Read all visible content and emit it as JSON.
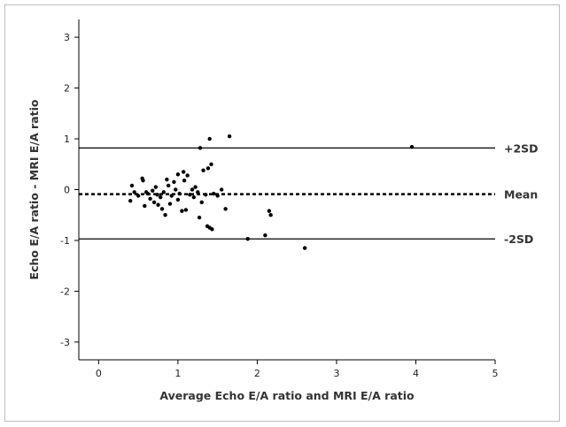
{
  "chart_data": {
    "type": "scatter",
    "xlabel": "Average Echo E/A ratio and MRI E/A ratio",
    "ylabel": "Echo E/A ratio - MRI E/A ratio",
    "xlim": [
      -0.25,
      5.0
    ],
    "ylim": [
      -3.35,
      3.35
    ],
    "xticks": [
      0,
      1,
      2,
      3,
      4,
      5
    ],
    "yticks": [
      -3,
      -2,
      -1,
      0,
      1,
      2,
      3
    ],
    "grid": false,
    "reference_lines": [
      {
        "label": "+2SD",
        "y": 0.82,
        "style": "solid"
      },
      {
        "label": "Mean",
        "y": -0.09,
        "style": "dashed"
      },
      {
        "label": "-2SD",
        "y": -0.97,
        "style": "solid"
      }
    ],
    "points": [
      {
        "x": 0.4,
        "y": -0.22
      },
      {
        "x": 0.42,
        "y": 0.08
      },
      {
        "x": 0.45,
        "y": -0.05
      },
      {
        "x": 0.5,
        "y": -0.12
      },
      {
        "x": 0.55,
        "y": 0.22
      },
      {
        "x": 0.56,
        "y": 0.18
      },
      {
        "x": 0.58,
        "y": -0.32
      },
      {
        "x": 0.6,
        "y": -0.05
      },
      {
        "x": 0.62,
        "y": -0.08
      },
      {
        "x": 0.65,
        "y": -0.18
      },
      {
        "x": 0.68,
        "y": -0.02
      },
      {
        "x": 0.7,
        "y": -0.25
      },
      {
        "x": 0.72,
        "y": 0.05
      },
      {
        "x": 0.74,
        "y": -0.1
      },
      {
        "x": 0.75,
        "y": -0.3
      },
      {
        "x": 0.78,
        "y": -0.15
      },
      {
        "x": 0.8,
        "y": -0.38
      },
      {
        "x": 0.82,
        "y": -0.05
      },
      {
        "x": 0.84,
        "y": -0.5
      },
      {
        "x": 0.86,
        "y": 0.2
      },
      {
        "x": 0.88,
        "y": 0.08
      },
      {
        "x": 0.9,
        "y": -0.28
      },
      {
        "x": 0.92,
        "y": -0.12
      },
      {
        "x": 0.95,
        "y": 0.15
      },
      {
        "x": 0.97,
        "y": 0.0
      },
      {
        "x": 1.0,
        "y": 0.3
      },
      {
        "x": 1.0,
        "y": -0.2
      },
      {
        "x": 1.02,
        "y": -0.08
      },
      {
        "x": 1.05,
        "y": -0.42
      },
      {
        "x": 1.07,
        "y": 0.35
      },
      {
        "x": 1.08,
        "y": 0.18
      },
      {
        "x": 1.1,
        "y": -0.4
      },
      {
        "x": 1.12,
        "y": 0.28
      },
      {
        "x": 1.15,
        "y": -0.1
      },
      {
        "x": 1.18,
        "y": 0.0
      },
      {
        "x": 1.2,
        "y": -0.15
      },
      {
        "x": 1.22,
        "y": 0.05
      },
      {
        "x": 1.25,
        "y": -0.05
      },
      {
        "x": 1.27,
        "y": -0.55
      },
      {
        "x": 1.28,
        "y": 0.82
      },
      {
        "x": 1.3,
        "y": -0.25
      },
      {
        "x": 1.32,
        "y": 0.38
      },
      {
        "x": 1.35,
        "y": -0.1
      },
      {
        "x": 1.37,
        "y": -0.72
      },
      {
        "x": 1.38,
        "y": 0.42
      },
      {
        "x": 1.4,
        "y": 1.0
      },
      {
        "x": 1.4,
        "y": -0.75
      },
      {
        "x": 1.42,
        "y": 0.5
      },
      {
        "x": 1.43,
        "y": -0.78
      },
      {
        "x": 1.45,
        "y": -0.08
      },
      {
        "x": 1.5,
        "y": -0.12
      },
      {
        "x": 1.55,
        "y": 0.0
      },
      {
        "x": 1.6,
        "y": -0.38
      },
      {
        "x": 1.65,
        "y": 1.05
      },
      {
        "x": 1.88,
        "y": -0.97
      },
      {
        "x": 2.1,
        "y": -0.9
      },
      {
        "x": 2.15,
        "y": -0.42
      },
      {
        "x": 2.17,
        "y": -0.5
      },
      {
        "x": 2.6,
        "y": -1.15
      },
      {
        "x": 3.95,
        "y": 0.84
      }
    ]
  }
}
